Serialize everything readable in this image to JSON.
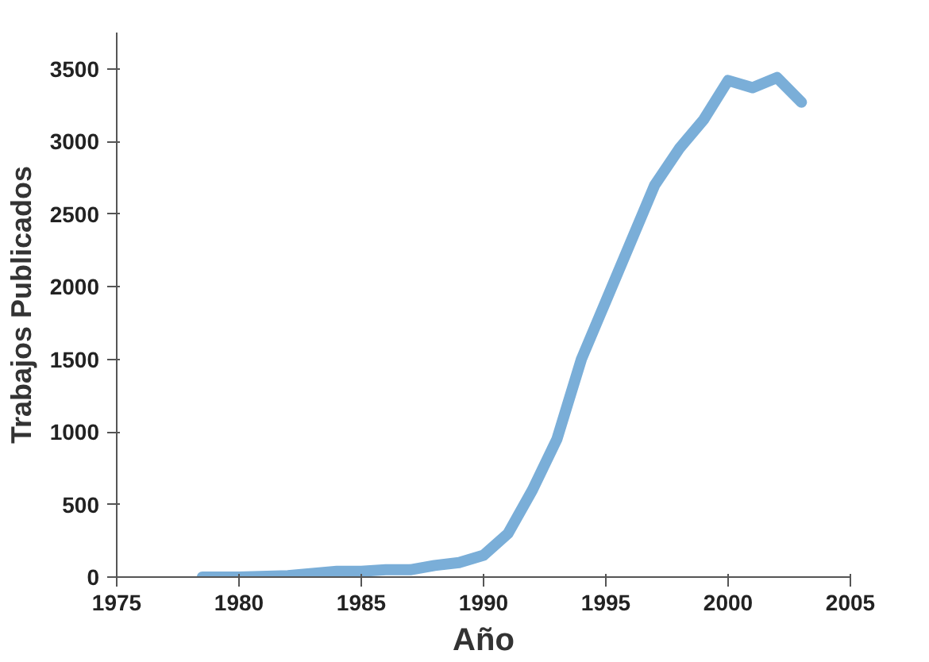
{
  "chart_data": {
    "type": "line",
    "xlabel": "Año",
    "ylabel": "Trabajos Publicados",
    "x": [
      1978.5,
      1980,
      1982,
      1984,
      1985,
      1986,
      1987,
      1988,
      1989,
      1990,
      1991,
      1992,
      1993,
      1994,
      1995,
      1996,
      1997,
      1998,
      1999,
      2000,
      2001,
      2002,
      2003
    ],
    "series": [
      {
        "color": "#7aaed8",
        "values": [
          0,
          0,
          10,
          40,
          40,
          50,
          50,
          80,
          100,
          150,
          300,
          600,
          950,
          1500,
          1900,
          2300,
          2700,
          2950,
          3150,
          3420,
          3370,
          3440,
          3270
        ]
      }
    ],
    "xlim": [
      1975,
      2005
    ],
    "xticks": [
      1975,
      1980,
      1985,
      1990,
      1995,
      2000,
      2005
    ],
    "ylim": [
      0,
      3750
    ],
    "yticks": [
      0,
      500,
      1000,
      1500,
      2000,
      2500,
      3000,
      3500
    ],
    "grid": false,
    "marker": "none",
    "line_style": "solid"
  }
}
